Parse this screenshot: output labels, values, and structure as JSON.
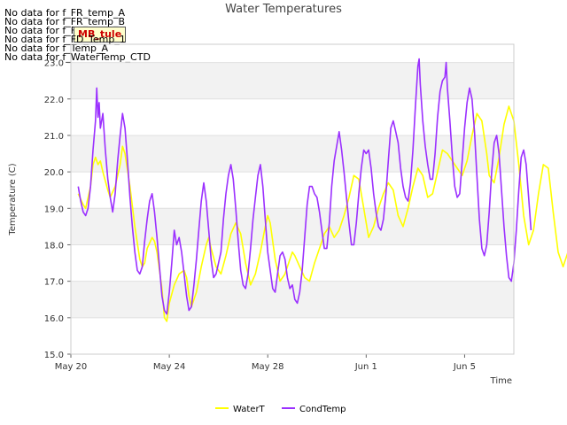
{
  "chart_data": {
    "type": "line",
    "title": "Water Temperatures",
    "xlabel": "Time",
    "ylabel": "Temperature (C)",
    "xlim": [
      "May 20",
      "Jun 7"
    ],
    "x_ticks": [
      "May 20",
      "May 24",
      "May 28",
      "Jun 1",
      "Jun 5"
    ],
    "ylim": [
      15.0,
      23.5
    ],
    "y_ticks": [
      "15.0",
      "16.0",
      "17.0",
      "18.0",
      "19.0",
      "20.0",
      "21.0",
      "22.0",
      "23.0"
    ],
    "grid": "horizontal bands",
    "legend": "bottom-center",
    "day_of_x": [
      "May 20",
      "May 21",
      "May 22",
      "May 23",
      "May 24",
      "May 25",
      "May 26",
      "May 27",
      "May 28",
      "May 29",
      "May 30",
      "May 31",
      "Jun 1",
      "Jun 2",
      "Jun 3",
      "Jun 4",
      "Jun 5",
      "Jun 6",
      "Jun 7"
    ],
    "series": [
      {
        "name": "WaterT",
        "color": "#ffff00",
        "points": [
          [
            0.3,
            19.4
          ],
          [
            0.5,
            19.1
          ],
          [
            0.6,
            19.0
          ],
          [
            0.8,
            19.6
          ],
          [
            0.9,
            20.2
          ],
          [
            1.0,
            20.4
          ],
          [
            1.1,
            20.2
          ],
          [
            1.2,
            20.3
          ],
          [
            1.3,
            20.0
          ],
          [
            1.5,
            19.5
          ],
          [
            1.6,
            19.3
          ],
          [
            1.8,
            19.6
          ],
          [
            2.0,
            20.2
          ],
          [
            2.1,
            20.7
          ],
          [
            2.2,
            20.5
          ],
          [
            2.4,
            19.6
          ],
          [
            2.6,
            18.5
          ],
          [
            2.8,
            17.6
          ],
          [
            2.9,
            17.4
          ],
          [
            3.0,
            17.5
          ],
          [
            3.1,
            17.9
          ],
          [
            3.3,
            18.2
          ],
          [
            3.4,
            18.1
          ],
          [
            3.5,
            17.8
          ],
          [
            3.7,
            16.8
          ],
          [
            3.8,
            16.0
          ],
          [
            3.9,
            15.9
          ],
          [
            4.0,
            16.4
          ],
          [
            4.2,
            16.9
          ],
          [
            4.4,
            17.2
          ],
          [
            4.6,
            17.3
          ],
          [
            4.7,
            17.1
          ],
          [
            4.8,
            16.6
          ],
          [
            4.9,
            16.3
          ],
          [
            5.1,
            16.7
          ],
          [
            5.3,
            17.4
          ],
          [
            5.5,
            18.0
          ],
          [
            5.6,
            18.2
          ],
          [
            5.7,
            17.9
          ],
          [
            5.9,
            17.4
          ],
          [
            6.1,
            17.2
          ],
          [
            6.3,
            17.7
          ],
          [
            6.5,
            18.3
          ],
          [
            6.7,
            18.6
          ],
          [
            6.9,
            18.3
          ],
          [
            7.1,
            17.5
          ],
          [
            7.3,
            16.9
          ],
          [
            7.5,
            17.2
          ],
          [
            7.7,
            17.8
          ],
          [
            7.9,
            18.5
          ],
          [
            8.0,
            18.8
          ],
          [
            8.1,
            18.6
          ],
          [
            8.3,
            17.6
          ],
          [
            8.5,
            17.0
          ],
          [
            8.7,
            17.2
          ],
          [
            8.9,
            17.6
          ],
          [
            9.0,
            17.8
          ],
          [
            9.1,
            17.7
          ],
          [
            9.3,
            17.4
          ],
          [
            9.5,
            17.1
          ],
          [
            9.7,
            17.0
          ],
          [
            9.9,
            17.5
          ],
          [
            10.1,
            17.9
          ],
          [
            10.3,
            18.3
          ],
          [
            10.5,
            18.5
          ],
          [
            10.7,
            18.2
          ],
          [
            10.9,
            18.4
          ],
          [
            11.1,
            18.8
          ],
          [
            11.3,
            19.3
          ],
          [
            11.5,
            19.9
          ],
          [
            11.7,
            19.8
          ],
          [
            11.9,
            19.0
          ],
          [
            12.1,
            18.2
          ],
          [
            12.3,
            18.5
          ],
          [
            12.5,
            19.0
          ],
          [
            12.7,
            19.4
          ],
          [
            12.9,
            19.7
          ],
          [
            13.1,
            19.5
          ],
          [
            13.3,
            18.8
          ],
          [
            13.5,
            18.5
          ],
          [
            13.7,
            19.0
          ],
          [
            13.9,
            19.6
          ],
          [
            14.1,
            20.1
          ],
          [
            14.3,
            19.9
          ],
          [
            14.5,
            19.3
          ],
          [
            14.7,
            19.4
          ],
          [
            14.9,
            20.0
          ],
          [
            15.1,
            20.6
          ],
          [
            15.3,
            20.5
          ],
          [
            15.5,
            20.3
          ],
          [
            15.7,
            20.1
          ],
          [
            15.9,
            19.9
          ],
          [
            16.1,
            20.3
          ],
          [
            16.3,
            21.0
          ],
          [
            16.5,
            21.6
          ],
          [
            16.7,
            21.4
          ],
          [
            16.9,
            20.5
          ],
          [
            17.0,
            19.9
          ],
          [
            17.2,
            19.7
          ],
          [
            17.4,
            20.4
          ],
          [
            17.6,
            21.3
          ],
          [
            17.8,
            21.8
          ],
          [
            18.0,
            21.4
          ],
          [
            18.2,
            20.2
          ],
          [
            18.4,
            18.8
          ],
          [
            18.6,
            18.0
          ],
          [
            18.8,
            18.4
          ],
          [
            19.0,
            19.4
          ],
          [
            19.2,
            20.2
          ],
          [
            19.4,
            20.1
          ],
          [
            19.6,
            18.9
          ],
          [
            19.8,
            17.8
          ],
          [
            20.0,
            17.4
          ],
          [
            20.2,
            17.8
          ],
          [
            20.4,
            18.8
          ],
          [
            20.6,
            19.6
          ],
          [
            20.8,
            19.9
          ],
          [
            21.0,
            19.6
          ],
          [
            21.2,
            19.0
          ]
        ]
      },
      {
        "name": "CondTemp",
        "color": "#9b30ff",
        "points": [
          [
            0.3,
            19.6
          ],
          [
            0.4,
            19.2
          ],
          [
            0.5,
            18.9
          ],
          [
            0.6,
            18.8
          ],
          [
            0.7,
            19.0
          ],
          [
            0.8,
            19.6
          ],
          [
            0.9,
            20.6
          ],
          [
            1.0,
            21.4
          ],
          [
            1.05,
            22.3
          ],
          [
            1.1,
            21.5
          ],
          [
            1.15,
            21.9
          ],
          [
            1.2,
            21.2
          ],
          [
            1.3,
            21.6
          ],
          [
            1.4,
            20.6
          ],
          [
            1.5,
            19.8
          ],
          [
            1.6,
            19.3
          ],
          [
            1.7,
            18.9
          ],
          [
            1.8,
            19.4
          ],
          [
            1.9,
            20.3
          ],
          [
            2.0,
            21.0
          ],
          [
            2.1,
            21.6
          ],
          [
            2.2,
            21.2
          ],
          [
            2.3,
            20.3
          ],
          [
            2.4,
            19.3
          ],
          [
            2.5,
            18.5
          ],
          [
            2.6,
            17.8
          ],
          [
            2.7,
            17.3
          ],
          [
            2.8,
            17.2
          ],
          [
            2.9,
            17.4
          ],
          [
            3.0,
            18.1
          ],
          [
            3.1,
            18.7
          ],
          [
            3.2,
            19.2
          ],
          [
            3.3,
            19.4
          ],
          [
            3.4,
            18.9
          ],
          [
            3.5,
            18.2
          ],
          [
            3.6,
            17.4
          ],
          [
            3.7,
            16.6
          ],
          [
            3.8,
            16.2
          ],
          [
            3.9,
            16.1
          ],
          [
            4.0,
            16.7
          ],
          [
            4.1,
            17.5
          ],
          [
            4.2,
            18.4
          ],
          [
            4.3,
            18.0
          ],
          [
            4.4,
            18.2
          ],
          [
            4.5,
            17.8
          ],
          [
            4.6,
            17.2
          ],
          [
            4.7,
            16.6
          ],
          [
            4.8,
            16.2
          ],
          [
            4.9,
            16.3
          ],
          [
            5.0,
            16.9
          ],
          [
            5.1,
            17.6
          ],
          [
            5.2,
            18.4
          ],
          [
            5.3,
            19.2
          ],
          [
            5.4,
            19.7
          ],
          [
            5.5,
            19.2
          ],
          [
            5.6,
            18.4
          ],
          [
            5.7,
            17.6
          ],
          [
            5.8,
            17.1
          ],
          [
            5.9,
            17.2
          ],
          [
            6.1,
            17.8
          ],
          [
            6.2,
            18.7
          ],
          [
            6.3,
            19.4
          ],
          [
            6.4,
            19.9
          ],
          [
            6.5,
            20.2
          ],
          [
            6.6,
            19.8
          ],
          [
            6.7,
            19.0
          ],
          [
            6.8,
            18.1
          ],
          [
            6.9,
            17.3
          ],
          [
            7.0,
            16.9
          ],
          [
            7.1,
            16.8
          ],
          [
            7.2,
            17.2
          ],
          [
            7.3,
            17.9
          ],
          [
            7.4,
            18.7
          ],
          [
            7.5,
            19.3
          ],
          [
            7.6,
            19.9
          ],
          [
            7.7,
            20.2
          ],
          [
            7.8,
            19.6
          ],
          [
            7.9,
            18.7
          ],
          [
            8.0,
            17.8
          ],
          [
            8.1,
            17.3
          ],
          [
            8.2,
            16.8
          ],
          [
            8.3,
            16.7
          ],
          [
            8.4,
            17.2
          ],
          [
            8.5,
            17.7
          ],
          [
            8.6,
            17.8
          ],
          [
            8.7,
            17.6
          ],
          [
            8.8,
            17.1
          ],
          [
            8.9,
            16.8
          ],
          [
            9.0,
            16.9
          ],
          [
            9.1,
            16.5
          ],
          [
            9.2,
            16.4
          ],
          [
            9.3,
            16.7
          ],
          [
            9.4,
            17.3
          ],
          [
            9.5,
            18.2
          ],
          [
            9.6,
            19.1
          ],
          [
            9.7,
            19.6
          ],
          [
            9.8,
            19.6
          ],
          [
            9.9,
            19.4
          ],
          [
            10.0,
            19.3
          ],
          [
            10.1,
            18.9
          ],
          [
            10.2,
            18.4
          ],
          [
            10.3,
            17.9
          ],
          [
            10.4,
            17.9
          ],
          [
            10.5,
            18.6
          ],
          [
            10.6,
            19.6
          ],
          [
            10.7,
            20.3
          ],
          [
            10.8,
            20.7
          ],
          [
            10.9,
            21.1
          ],
          [
            11.0,
            20.6
          ],
          [
            11.1,
            20.0
          ],
          [
            11.2,
            19.3
          ],
          [
            11.3,
            18.6
          ],
          [
            11.4,
            18.0
          ],
          [
            11.5,
            18.0
          ],
          [
            11.6,
            18.6
          ],
          [
            11.7,
            19.4
          ],
          [
            11.8,
            20.1
          ],
          [
            11.9,
            20.6
          ],
          [
            12.0,
            20.5
          ],
          [
            12.1,
            20.6
          ],
          [
            12.2,
            20.1
          ],
          [
            12.3,
            19.4
          ],
          [
            12.4,
            18.9
          ],
          [
            12.5,
            18.5
          ],
          [
            12.6,
            18.4
          ],
          [
            12.7,
            18.7
          ],
          [
            12.8,
            19.4
          ],
          [
            12.9,
            20.3
          ],
          [
            13.0,
            21.2
          ],
          [
            13.1,
            21.4
          ],
          [
            13.2,
            21.1
          ],
          [
            13.3,
            20.8
          ],
          [
            13.4,
            20.1
          ],
          [
            13.5,
            19.6
          ],
          [
            13.6,
            19.3
          ],
          [
            13.7,
            19.2
          ],
          [
            13.8,
            19.7
          ],
          [
            13.9,
            20.6
          ],
          [
            14.0,
            21.8
          ],
          [
            14.1,
            22.9
          ],
          [
            14.15,
            23.1
          ],
          [
            14.2,
            22.4
          ],
          [
            14.3,
            21.4
          ],
          [
            14.4,
            20.7
          ],
          [
            14.5,
            20.2
          ],
          [
            14.6,
            19.8
          ],
          [
            14.7,
            19.8
          ],
          [
            14.8,
            20.5
          ],
          [
            14.9,
            21.5
          ],
          [
            15.0,
            22.2
          ],
          [
            15.1,
            22.5
          ],
          [
            15.2,
            22.6
          ],
          [
            15.25,
            23.0
          ],
          [
            15.3,
            22.3
          ],
          [
            15.4,
            21.4
          ],
          [
            15.5,
            20.4
          ],
          [
            15.6,
            19.6
          ],
          [
            15.7,
            19.3
          ],
          [
            15.8,
            19.4
          ],
          [
            15.9,
            20.3
          ],
          [
            16.0,
            21.2
          ],
          [
            16.1,
            21.9
          ],
          [
            16.2,
            22.3
          ],
          [
            16.3,
            22.0
          ],
          [
            16.4,
            21.1
          ],
          [
            16.5,
            19.9
          ],
          [
            16.6,
            18.7
          ],
          [
            16.7,
            17.9
          ],
          [
            16.8,
            17.7
          ],
          [
            16.9,
            18.0
          ],
          [
            17.0,
            18.9
          ],
          [
            17.1,
            20.0
          ],
          [
            17.2,
            20.8
          ],
          [
            17.3,
            21.0
          ],
          [
            17.4,
            20.5
          ],
          [
            17.5,
            19.5
          ],
          [
            17.6,
            18.5
          ],
          [
            17.7,
            17.7
          ],
          [
            17.8,
            17.1
          ],
          [
            17.9,
            17.0
          ],
          [
            18.0,
            17.5
          ],
          [
            18.1,
            18.4
          ],
          [
            18.2,
            19.5
          ],
          [
            18.3,
            20.4
          ],
          [
            18.4,
            20.6
          ],
          [
            18.5,
            20.2
          ],
          [
            18.6,
            19.3
          ],
          [
            18.7,
            18.4
          ]
        ]
      }
    ]
  },
  "notices": [
    "No data for f_FR_temp_A",
    "No data for f_FR_temp_B",
    "No data for f_FR_temp_C",
    "No data for f_FD_Temp_1",
    "No data for f_Temp_A",
    "No data for f_WaterTemp_CTD"
  ],
  "tooltip": "MB_tule"
}
